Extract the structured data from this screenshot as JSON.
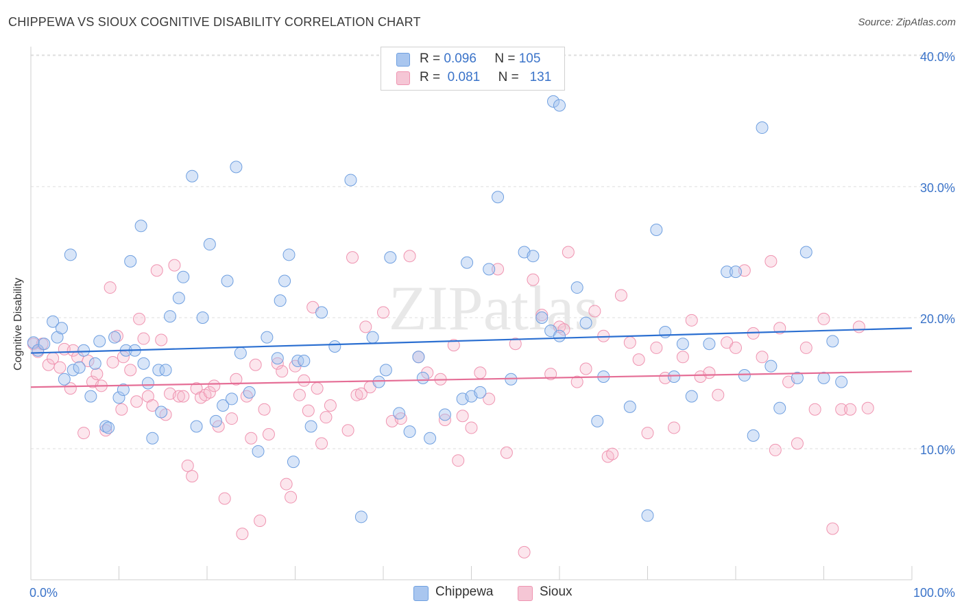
{
  "title": "CHIPPEWA VS SIOUX COGNITIVE DISABILITY CORRELATION CHART",
  "source": "Source: ZipAtlas.com",
  "watermark": "ZIPatlas",
  "legend": {
    "rows": [
      {
        "r_label": "R =",
        "r_value": "0.096",
        "n_label": "N =",
        "n_value": "105"
      },
      {
        "r_label": "R =",
        "r_value": "0.081",
        "n_label": "N =",
        "n_value": "131"
      }
    ]
  },
  "bottom_legend": {
    "chippewa": "Chippewa",
    "sioux": "Sioux"
  },
  "colors": {
    "chippewa_fill": "#a9c6ef",
    "chippewa_stroke": "#6e9fe0",
    "chippewa_line": "#2b6fd1",
    "sioux_fill": "#f5b8cb",
    "sioux_stroke": "#ef93b0",
    "sioux_line": "#e56e96",
    "tick_label": "#3a73c9",
    "grid": "#dedede"
  },
  "chart_data": {
    "type": "scatter",
    "title": "CHIPPEWA VS SIOUX COGNITIVE DISABILITY CORRELATION CHART",
    "xlabel": "",
    "ylabel": "Cognitive Disability",
    "xlim": [
      0,
      100
    ],
    "ylim": [
      0,
      42
    ],
    "x_tick_labels": [
      "0.0%",
      "100.0%"
    ],
    "y_ticks": [
      10,
      20,
      30,
      40
    ],
    "y_tick_labels": [
      "10.0%",
      "20.0%",
      "30.0%",
      "40.0%"
    ],
    "grid": "horizontal dashed",
    "legend_position": "top-center",
    "series": [
      {
        "name": "Chippewa",
        "R": 0.096,
        "N": 105,
        "trend": {
          "y_at_0": 17.3,
          "y_at_100": 19.2
        },
        "points": [
          [
            0.3,
            18.1
          ],
          [
            0.8,
            17.5
          ],
          [
            1.5,
            18.0
          ],
          [
            2.5,
            19.7
          ],
          [
            3.0,
            18.5
          ],
          [
            3.5,
            19.2
          ],
          [
            3.8,
            15.3
          ],
          [
            4.5,
            24.8
          ],
          [
            4.8,
            16.0
          ],
          [
            5.5,
            16.2
          ],
          [
            6.0,
            17.5
          ],
          [
            6.8,
            14.0
          ],
          [
            7.3,
            16.5
          ],
          [
            7.8,
            18.2
          ],
          [
            8.5,
            11.7
          ],
          [
            8.8,
            11.6
          ],
          [
            9.5,
            18.5
          ],
          [
            10.0,
            13.9
          ],
          [
            10.5,
            14.5
          ],
          [
            10.8,
            17.5
          ],
          [
            11.3,
            24.3
          ],
          [
            11.8,
            17.5
          ],
          [
            12.5,
            27.0
          ],
          [
            12.8,
            16.5
          ],
          [
            13.3,
            15.0
          ],
          [
            13.8,
            10.8
          ],
          [
            14.5,
            16.0
          ],
          [
            14.8,
            12.8
          ],
          [
            15.3,
            16.0
          ],
          [
            15.8,
            20.1
          ],
          [
            16.8,
            21.5
          ],
          [
            17.3,
            23.1
          ],
          [
            18.3,
            30.8
          ],
          [
            18.8,
            11.7
          ],
          [
            19.5,
            20.0
          ],
          [
            20.3,
            25.6
          ],
          [
            21.0,
            12.1
          ],
          [
            21.8,
            13.3
          ],
          [
            22.3,
            22.8
          ],
          [
            22.8,
            13.8
          ],
          [
            23.3,
            31.5
          ],
          [
            23.8,
            17.3
          ],
          [
            24.8,
            14.3
          ],
          [
            25.8,
            9.8
          ],
          [
            26.8,
            18.5
          ],
          [
            28.0,
            16.9
          ],
          [
            28.3,
            21.3
          ],
          [
            28.8,
            22.8
          ],
          [
            29.3,
            24.8
          ],
          [
            29.8,
            9.0
          ],
          [
            30.3,
            16.7
          ],
          [
            31.0,
            16.7
          ],
          [
            31.8,
            11.7
          ],
          [
            33.0,
            20.4
          ],
          [
            34.5,
            17.8
          ],
          [
            36.3,
            30.5
          ],
          [
            37.5,
            4.8
          ],
          [
            38.8,
            18.5
          ],
          [
            39.5,
            15.1
          ],
          [
            40.3,
            16.0
          ],
          [
            40.8,
            24.6
          ],
          [
            41.8,
            12.7
          ],
          [
            43.0,
            11.3
          ],
          [
            44.0,
            17.0
          ],
          [
            44.5,
            15.4
          ],
          [
            45.3,
            10.8
          ],
          [
            47.0,
            12.6
          ],
          [
            49.0,
            13.8
          ],
          [
            49.5,
            24.2
          ],
          [
            50.0,
            14.0
          ],
          [
            51.0,
            14.3
          ],
          [
            52.0,
            23.7
          ],
          [
            53.0,
            29.2
          ],
          [
            54.5,
            15.3
          ],
          [
            56.0,
            25.0
          ],
          [
            57.0,
            24.7
          ],
          [
            58.0,
            20.0
          ],
          [
            59.3,
            36.5
          ],
          [
            60.0,
            36.2
          ],
          [
            62.0,
            22.3
          ],
          [
            63.0,
            19.6
          ],
          [
            64.3,
            12.1
          ],
          [
            65.0,
            15.5
          ],
          [
            68.0,
            13.2
          ],
          [
            70.0,
            4.9
          ],
          [
            71.0,
            26.7
          ],
          [
            72.0,
            18.9
          ],
          [
            73.0,
            15.5
          ],
          [
            74.0,
            18.0
          ],
          [
            75.0,
            14.0
          ],
          [
            77.0,
            18.0
          ],
          [
            79.0,
            23.5
          ],
          [
            80.0,
            23.5
          ],
          [
            81.0,
            15.6
          ],
          [
            82.0,
            11.0
          ],
          [
            83.0,
            34.5
          ],
          [
            84.0,
            16.3
          ],
          [
            85.0,
            13.1
          ],
          [
            87.0,
            15.4
          ],
          [
            88.0,
            25.0
          ],
          [
            90.0,
            15.4
          ],
          [
            91.0,
            18.2
          ],
          [
            92.0,
            15.1
          ],
          [
            59.0,
            19.0
          ],
          [
            60.0,
            18.6
          ]
        ]
      },
      {
        "name": "Sioux",
        "R": 0.081,
        "N": 131,
        "trend": {
          "y_at_0": 14.7,
          "y_at_100": 15.9
        },
        "points": [
          [
            0.3,
            18.0
          ],
          [
            0.8,
            17.4
          ],
          [
            1.3,
            18.0
          ],
          [
            2.0,
            16.4
          ],
          [
            2.5,
            16.9
          ],
          [
            3.3,
            16.2
          ],
          [
            3.8,
            17.6
          ],
          [
            4.5,
            14.6
          ],
          [
            4.8,
            17.5
          ],
          [
            5.3,
            17.0
          ],
          [
            6.0,
            11.2
          ],
          [
            6.5,
            16.7
          ],
          [
            7.0,
            15.1
          ],
          [
            7.5,
            15.7
          ],
          [
            8.0,
            14.8
          ],
          [
            8.5,
            11.4
          ],
          [
            9.0,
            22.3
          ],
          [
            9.3,
            16.6
          ],
          [
            9.8,
            18.6
          ],
          [
            10.3,
            13.0
          ],
          [
            10.5,
            17.0
          ],
          [
            11.3,
            16.0
          ],
          [
            12.0,
            13.6
          ],
          [
            12.3,
            19.9
          ],
          [
            12.8,
            18.4
          ],
          [
            13.3,
            14.0
          ],
          [
            13.8,
            13.3
          ],
          [
            14.3,
            23.6
          ],
          [
            14.8,
            18.3
          ],
          [
            15.3,
            12.6
          ],
          [
            15.8,
            14.2
          ],
          [
            16.3,
            24.0
          ],
          [
            16.8,
            14.0
          ],
          [
            17.3,
            14.0
          ],
          [
            17.8,
            8.7
          ],
          [
            18.3,
            7.9
          ],
          [
            18.8,
            14.6
          ],
          [
            19.3,
            13.9
          ],
          [
            19.8,
            14.1
          ],
          [
            20.3,
            14.3
          ],
          [
            20.8,
            14.8
          ],
          [
            21.3,
            11.7
          ],
          [
            22.0,
            6.2
          ],
          [
            22.8,
            12.3
          ],
          [
            23.3,
            15.3
          ],
          [
            24.0,
            3.5
          ],
          [
            24.5,
            14.0
          ],
          [
            25.0,
            10.8
          ],
          [
            25.5,
            16.4
          ],
          [
            26.0,
            4.5
          ],
          [
            26.5,
            13.0
          ],
          [
            27.0,
            11.1
          ],
          [
            28.0,
            16.5
          ],
          [
            28.5,
            15.9
          ],
          [
            29.0,
            7.3
          ],
          [
            29.5,
            6.3
          ],
          [
            30.0,
            16.3
          ],
          [
            30.5,
            14.1
          ],
          [
            31.0,
            15.2
          ],
          [
            31.5,
            12.9
          ],
          [
            32.0,
            20.8
          ],
          [
            32.5,
            14.6
          ],
          [
            33.0,
            10.4
          ],
          [
            33.5,
            12.4
          ],
          [
            34.0,
            13.3
          ],
          [
            36.0,
            11.4
          ],
          [
            36.5,
            24.6
          ],
          [
            37.0,
            14.1
          ],
          [
            37.5,
            14.2
          ],
          [
            38.0,
            19.3
          ],
          [
            38.5,
            14.7
          ],
          [
            40.0,
            20.4
          ],
          [
            41.0,
            12.1
          ],
          [
            42.0,
            12.3
          ],
          [
            43.0,
            24.7
          ],
          [
            44.0,
            17.0
          ],
          [
            45.0,
            15.8
          ],
          [
            46.5,
            15.3
          ],
          [
            47.0,
            12.2
          ],
          [
            48.0,
            17.9
          ],
          [
            48.5,
            9.1
          ],
          [
            49.0,
            12.5
          ],
          [
            50.0,
            11.6
          ],
          [
            51.0,
            15.8
          ],
          [
            52.0,
            13.8
          ],
          [
            53.0,
            23.7
          ],
          [
            54.0,
            9.7
          ],
          [
            55.0,
            18.0
          ],
          [
            56.0,
            2.1
          ],
          [
            57.0,
            22.9
          ],
          [
            58.0,
            20.2
          ],
          [
            59.0,
            15.7
          ],
          [
            60.0,
            19.3
          ],
          [
            60.5,
            19.1
          ],
          [
            61.0,
            25.0
          ],
          [
            62.0,
            15.1
          ],
          [
            63.0,
            16.1
          ],
          [
            64.0,
            20.5
          ],
          [
            65.0,
            18.6
          ],
          [
            65.5,
            9.4
          ],
          [
            66.0,
            9.6
          ],
          [
            67.0,
            21.7
          ],
          [
            68.0,
            18.1
          ],
          [
            69.0,
            16.8
          ],
          [
            70.0,
            11.2
          ],
          [
            71.0,
            17.7
          ],
          [
            72.0,
            15.4
          ],
          [
            73.0,
            11.6
          ],
          [
            74.0,
            17.0
          ],
          [
            75.0,
            19.8
          ],
          [
            76.0,
            15.5
          ],
          [
            77.0,
            15.8
          ],
          [
            78.0,
            14.1
          ],
          [
            79.0,
            18.1
          ],
          [
            80.0,
            17.7
          ],
          [
            81.0,
            23.6
          ],
          [
            82.0,
            18.8
          ],
          [
            83.0,
            17.0
          ],
          [
            84.0,
            24.3
          ],
          [
            84.5,
            9.9
          ],
          [
            85.0,
            19.2
          ],
          [
            86.0,
            15.1
          ],
          [
            87.0,
            10.4
          ],
          [
            88.0,
            17.7
          ],
          [
            89.0,
            13.0
          ],
          [
            90.0,
            19.9
          ],
          [
            91.0,
            3.9
          ],
          [
            92.0,
            13.0
          ],
          [
            93.0,
            13.0
          ],
          [
            94.0,
            19.3
          ],
          [
            95.0,
            13.1
          ]
        ]
      }
    ]
  }
}
